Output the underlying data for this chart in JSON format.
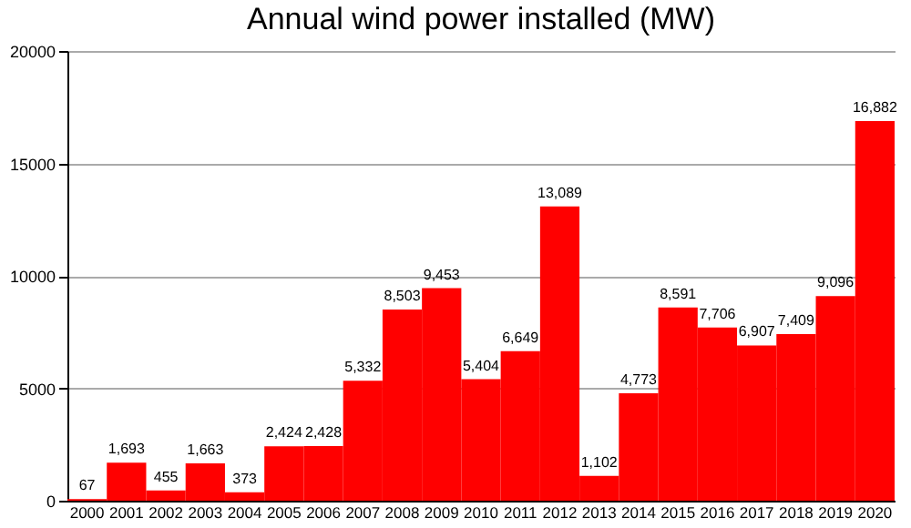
{
  "chart_data": {
    "type": "bar",
    "title": "Annual wind power installed (MW)",
    "categories": [
      "2000",
      "2001",
      "2002",
      "2003",
      "2004",
      "2005",
      "2006",
      "2007",
      "2008",
      "2009",
      "2010",
      "2011",
      "2012",
      "2013",
      "2014",
      "2015",
      "2016",
      "2017",
      "2018",
      "2019",
      "2020"
    ],
    "values": [
      67,
      1693,
      455,
      1663,
      373,
      2424,
      2428,
      5332,
      8503,
      9453,
      5404,
      6649,
      13089,
      1102,
      4773,
      8591,
      7706,
      6907,
      7409,
      9096,
      16882
    ],
    "color": "#ff0000",
    "ylim": [
      0,
      20000
    ],
    "yticks": [
      0,
      5000,
      10000,
      15000,
      20000
    ],
    "grid": "y",
    "value_labels": [
      "67",
      "1,693",
      "455",
      "1,663",
      "373",
      "2,424",
      "2,428",
      "5,332",
      "8,503",
      "9,453",
      "5,404",
      "6,649",
      "13,089",
      "1,102",
      "4,773",
      "8,591",
      "7,706",
      "6,907",
      "7,409",
      "9,096",
      "16,882"
    ]
  }
}
